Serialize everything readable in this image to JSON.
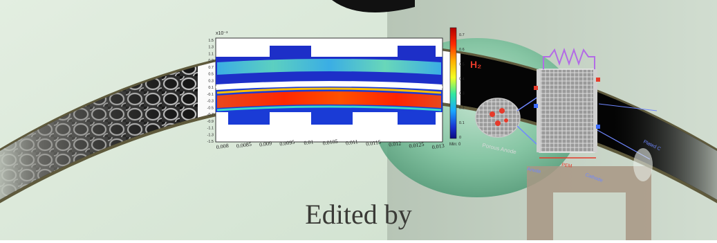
{
  "cover": {
    "caption": "Edited by",
    "colors": {
      "background_left": "#dbe9dc",
      "background_right": "#c9d7c9",
      "band_dark": "#0c0c0c",
      "frame_olive": "#5f5a3c",
      "accent_red": "#e63a2a"
    }
  },
  "heatmap_panel": {
    "exponent_label": "x10⁻³",
    "y_ticks": [
      "1.5",
      "1.3",
      "1.1",
      "0.9",
      "0.7",
      "0.5",
      "0.3",
      "0.1",
      "-0.1",
      "-0.3",
      "-0.5",
      "-0.7",
      "-0.9",
      "-1.1",
      "-1.3",
      "-1.5"
    ],
    "x_ticks": [
      "0.008",
      "0.0085",
      "0.009",
      "0.0095",
      "0.01",
      "0.0105",
      "0.011",
      "0.0115",
      "0.012",
      "0.0125",
      "0.013"
    ],
    "colorbar_ticks": [
      "0.7",
      "0.6",
      "0.5",
      "0.4",
      "0.3",
      "0.2",
      "0.1",
      "0"
    ],
    "colorbar_max_label": "",
    "colorbar_min_label": "Min: 0",
    "species_label": "H₂"
  },
  "schematic_panel": {
    "left_label": "Porous Anode",
    "bottom_left_label": "Anode",
    "bottom_mid_label": "PEM",
    "bottom_right_label": "Cathode",
    "right_label": "Plated C"
  }
}
